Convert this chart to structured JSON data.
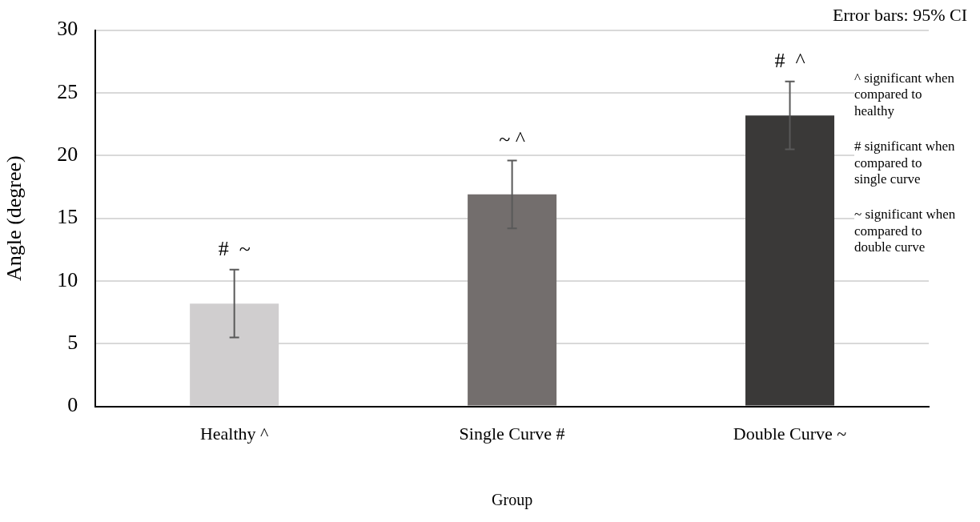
{
  "chart_data": {
    "type": "bar",
    "xlabel": "Group",
    "ylabel": "Angle (degree)",
    "categories": [
      "Healthy ^",
      "Single Curve #",
      "Double Curve ~"
    ],
    "values": [
      8.2,
      16.9,
      23.2
    ],
    "colors": [
      "#d0cecf",
      "#736e6d",
      "#3a3938"
    ],
    "errors": [
      2.7,
      2.7,
      2.7
    ],
    "ylim": [
      0,
      30
    ],
    "yticks": [
      0,
      5,
      10,
      15,
      20,
      25,
      30
    ],
    "grid": "y",
    "legend": false,
    "annotations": [
      "Error bars: 95% CI",
      "^ significant when compared to healthy",
      "# significant when compared to single curve",
      "~ significant when compared to double curve",
      "#  ~",
      "~ ^",
      "#  ^"
    ]
  }
}
